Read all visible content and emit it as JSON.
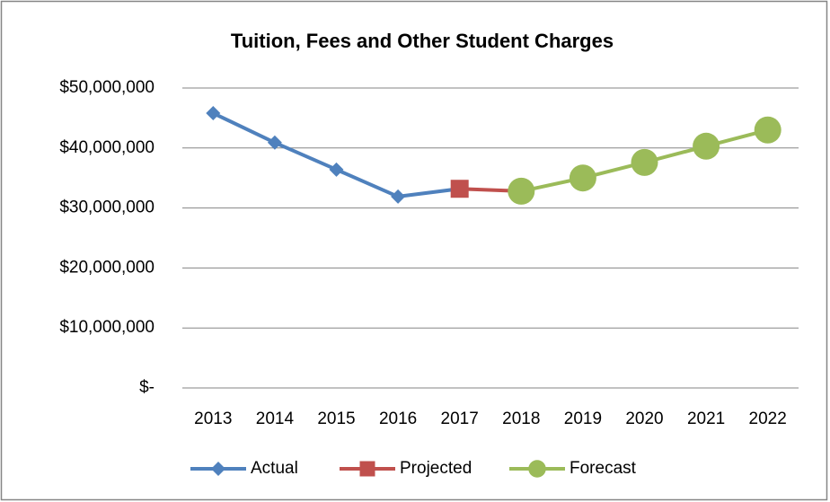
{
  "chart_data": {
    "type": "line",
    "title": "Tuition, Fees and Other Student Charges",
    "categories": [
      "2013",
      "2014",
      "2015",
      "2016",
      "2017",
      "2018",
      "2019",
      "2020",
      "2021",
      "2022"
    ],
    "series": [
      {
        "name": "Actual",
        "color": "#4f81bd",
        "marker": "diamond",
        "values": [
          45800000,
          40900000,
          36400000,
          31900000,
          33200000,
          null,
          null,
          null,
          null,
          null
        ]
      },
      {
        "name": "Projected",
        "color": "#c0504d",
        "marker": "square",
        "values": [
          null,
          null,
          null,
          null,
          33200000,
          32800000,
          null,
          null,
          null,
          null
        ]
      },
      {
        "name": "Forecast",
        "color": "#9bbb59",
        "marker": "circle",
        "values": [
          null,
          null,
          null,
          null,
          null,
          32800000,
          35000000,
          37600000,
          40300000,
          43000000
        ]
      }
    ],
    "ylim": [
      0,
      50000000
    ],
    "yticks": [
      {
        "value": 0,
        "label": "$-"
      },
      {
        "value": 10000000,
        "label": "$10,000,000"
      },
      {
        "value": 20000000,
        "label": "$20,000,000"
      },
      {
        "value": 30000000,
        "label": "$30,000,000"
      },
      {
        "value": 40000000,
        "label": "$40,000,000"
      },
      {
        "value": 50000000,
        "label": "$50,000,000"
      }
    ],
    "grid": true,
    "legend": "bottom"
  }
}
